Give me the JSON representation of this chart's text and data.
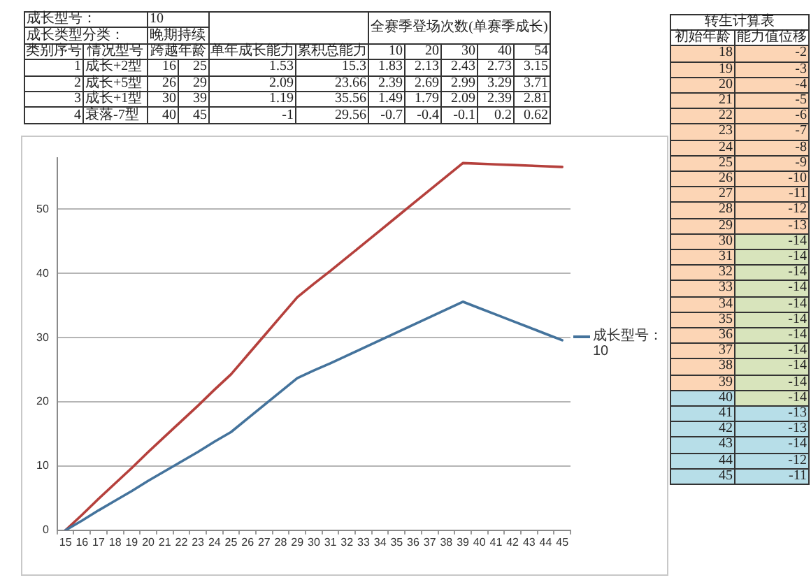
{
  "chart_data": {
    "type": "line",
    "categories": [
      "15",
      "16",
      "17",
      "18",
      "19",
      "20",
      "21",
      "22",
      "23",
      "24",
      "25",
      "26",
      "27",
      "28",
      "29",
      "30",
      "31",
      "32",
      "33",
      "34",
      "35",
      "36",
      "37",
      "38",
      "39",
      "40",
      "41",
      "42",
      "43",
      "44",
      "45"
    ],
    "series": [
      {
        "name": "成长型号：10",
        "color": "#44739c",
        "values": [
          0,
          1.5,
          3.1,
          4.6,
          6.1,
          7.7,
          9.2,
          10.7,
          12.2,
          13.8,
          15.3,
          17.4,
          19.5,
          21.6,
          23.7,
          24.9,
          26.0,
          27.2,
          28.4,
          29.6,
          30.8,
          32.0,
          33.2,
          34.4,
          35.6,
          34.6,
          33.6,
          32.6,
          31.6,
          30.6,
          29.6
        ]
      },
      {
        "color": "#b5403c",
        "values": [
          0,
          2.4,
          4.9,
          7.3,
          9.7,
          12.2,
          14.6,
          17.0,
          19.4,
          21.9,
          24.3,
          27.3,
          30.3,
          33.3,
          36.3,
          38.4,
          40.4,
          42.5,
          44.6,
          46.7,
          48.8,
          50.9,
          53.0,
          55.1,
          57.2,
          57.1,
          57.0,
          56.9,
          56.8,
          56.7,
          56.6
        ]
      }
    ],
    "ylim": [
      0,
      58
    ],
    "yticks": [
      0,
      10,
      20,
      30,
      40,
      50
    ],
    "grid": "y",
    "legend": "right",
    "marker": "none",
    "annotations": [
      "成长型号：",
      "10",
      "全赛季登场次数(单赛季成长)",
      "成长类型分类：",
      "晚期持续",
      "类别序号",
      "情况型号",
      "跨越年龄",
      "单年成长能力",
      "累积总能力",
      "10",
      "20",
      "30",
      "40",
      "54",
      "1",
      "成长+2型",
      "16",
      "25",
      "1.53",
      "15.3",
      "1.83",
      "2.13",
      "2.43",
      "2.73",
      "3.15",
      "2",
      "成长+5型",
      "26",
      "29",
      "2.09",
      "23.66",
      "2.39",
      "2.69",
      "2.99",
      "3.29",
      "3.71",
      "3",
      "成长+1型",
      "30",
      "39",
      "1.19",
      "35.56",
      "1.49",
      "1.79",
      "2.09",
      "2.39",
      "2.81",
      "4",
      "衰落-7型",
      "40",
      "45",
      "-1",
      "29.56",
      "-0.7",
      "-0.4",
      "-0.1",
      "0.2",
      "0.62",
      "转生计算表",
      "初始年龄",
      "能力值位移",
      "18",
      "-2",
      "19",
      "-3",
      "20",
      "-4",
      "21",
      "-5",
      "22",
      "-6",
      "23",
      "-7",
      "24",
      "-8",
      "25",
      "-9",
      "26",
      "-10",
      "27",
      "-11",
      "28",
      "-12",
      "29",
      "-13",
      "30",
      "-14",
      "31",
      "-14",
      "32",
      "-14",
      "33",
      "-14",
      "34",
      "-14",
      "35",
      "-14",
      "36",
      "-14",
      "37",
      "-14",
      "38",
      "-14",
      "39",
      "-14",
      "40",
      "-14",
      "41",
      "-13",
      "42",
      "-13",
      "43",
      "-14",
      "44",
      "-12",
      "45",
      "-11"
    ]
  }
}
